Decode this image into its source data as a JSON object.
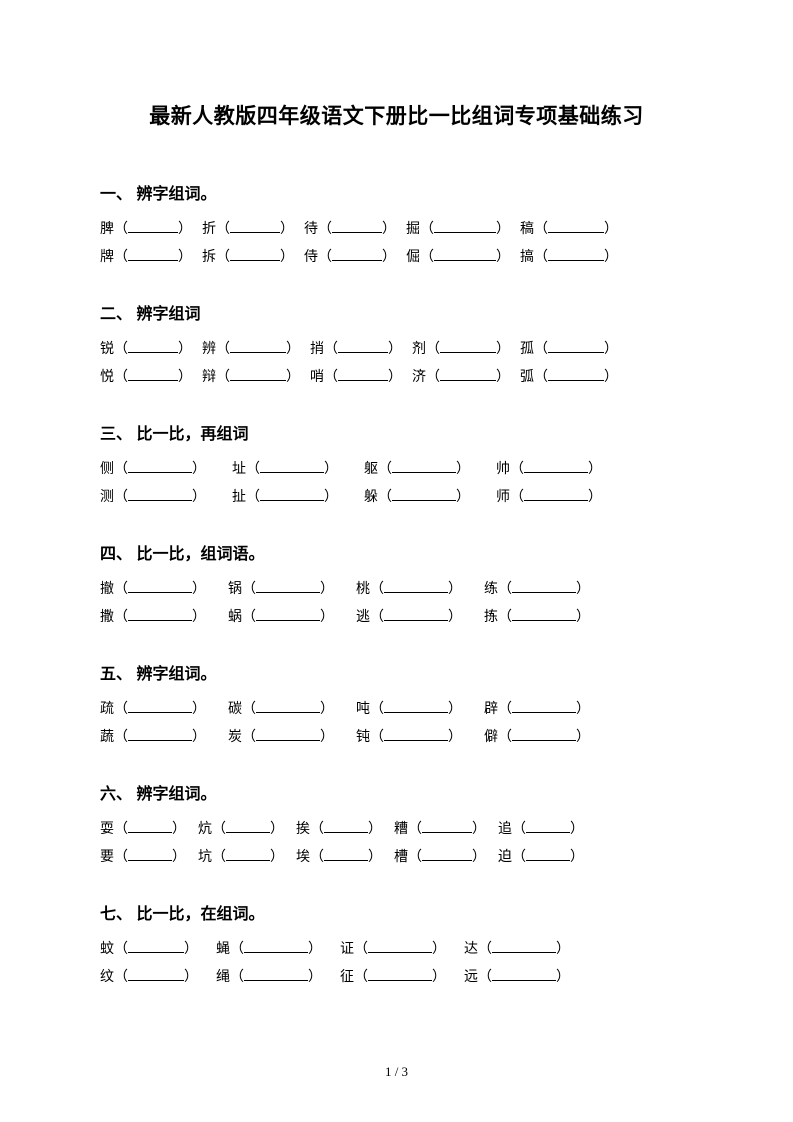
{
  "title": "最新人教版四年级语文下册比一比组词专项基础练习",
  "footer": "1 / 3",
  "blank_widths": {
    "s1": [
      50,
      50,
      50,
      62,
      56
    ],
    "s2": [
      50,
      56,
      50,
      56,
      56
    ],
    "s3": [
      64,
      64,
      64,
      64
    ],
    "s4": [
      64,
      64,
      64,
      64
    ],
    "s5": [
      64,
      64,
      64,
      64
    ],
    "s6": [
      44,
      44,
      44,
      50,
      44
    ],
    "s7": [
      56,
      64,
      64,
      64
    ]
  },
  "cell_gaps": {
    "s1": 10,
    "s2": 10,
    "s3": 26,
    "s4": 22,
    "s5": 22,
    "s6": 12,
    "s7": 18
  },
  "sections": [
    {
      "heading": "一、 辨字组词。",
      "style": "s1",
      "rows": [
        [
          "脾",
          "折",
          "待",
          "掘",
          "稿"
        ],
        [
          "牌",
          "拆",
          "侍",
          "倔",
          "搞"
        ]
      ]
    },
    {
      "heading": "二、 辨字组词",
      "style": "s2",
      "rows": [
        [
          "锐",
          "辨",
          "捎",
          "剂",
          "孤"
        ],
        [
          "悦",
          "辩",
          "哨",
          "济",
          "弧"
        ]
      ]
    },
    {
      "heading": "三、 比一比，再组词",
      "style": "s3",
      "rows": [
        [
          "侧",
          "址",
          "躯",
          "帅"
        ],
        [
          "测",
          "扯",
          "躲",
          "师"
        ]
      ]
    },
    {
      "heading": "四、 比一比，组词语。",
      "style": "s4",
      "rows": [
        [
          "撤",
          "锅",
          "桃",
          "练"
        ],
        [
          "撒",
          "蜗",
          "逃",
          "拣"
        ]
      ]
    },
    {
      "heading": "五、 辨字组词。",
      "style": "s5",
      "rows": [
        [
          "疏",
          "碳",
          "吨",
          "辟"
        ],
        [
          "蔬",
          "炭",
          "钝",
          "僻"
        ]
      ]
    },
    {
      "heading": "六、 辨字组词。",
      "style": "s6",
      "rows": [
        [
          "耍",
          "炕",
          "挨",
          "糟",
          "追"
        ],
        [
          "要",
          "坑",
          "埃",
          "槽",
          "迫"
        ]
      ]
    },
    {
      "heading": "七、 比一比，在组词。",
      "style": "s7",
      "rows": [
        [
          "蚊",
          "蝇",
          "证",
          "达"
        ],
        [
          "纹",
          "绳",
          "征",
          "远"
        ]
      ]
    }
  ]
}
